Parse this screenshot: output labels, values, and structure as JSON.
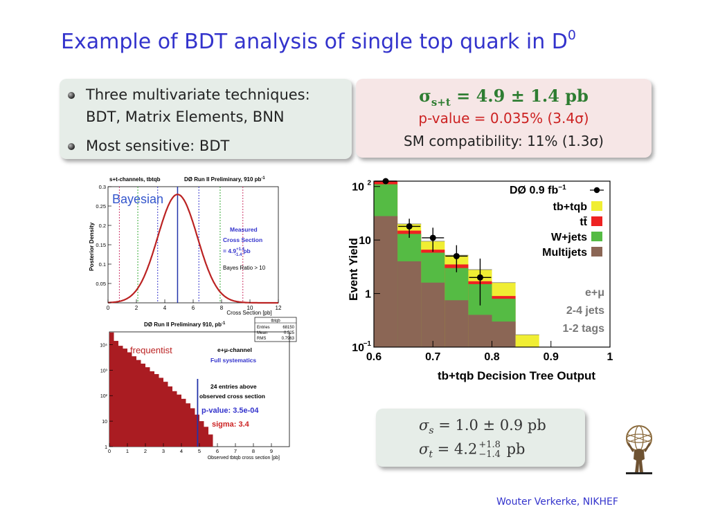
{
  "slide": {
    "title": "Example of BDT analysis of single top quark in D",
    "title_sup": "0",
    "footer": "Wouter Verkerke, NIKHEF"
  },
  "bullets": [
    {
      "line1": "Three multivariate techniques:",
      "line2": "BDT, Matrix Elements, BNN"
    },
    {
      "line1": "Most sensitive: BDT"
    }
  ],
  "result_box": {
    "sigma": "σ",
    "sigma_sub": "s+t",
    "sigma_value": " = 4.9 ± 1.4 pb",
    "pvalue": "p-value = 0.035% (3.4σ)",
    "sm": "SM compatibility: 11% (1.3σ)"
  },
  "xsec_box": {
    "s_sym": "σ",
    "s_sub": "s",
    "s_val": " = 1.0 ± 0.9 pb",
    "t_sym": "σ",
    "t_sub": "t",
    "t_pre": " = 4.2",
    "t_up": "+1.8",
    "t_dn": "−1.4",
    "t_unit": " pb"
  },
  "chart_data": [
    {
      "type": "line",
      "panel": "bayesian",
      "header_left": "s+t-channels, tbtqb",
      "header_right": "DØ Run II Preliminary, 910 pb",
      "header_right_sup": "-1",
      "label": "Bayesian",
      "xlabel": "Cross Section [pb]",
      "ylabel": "Posterior Density",
      "xlim": [
        0,
        12
      ],
      "ylim": [
        0,
        0.3
      ],
      "xticks": [
        0,
        2,
        4,
        6,
        8,
        10,
        12
      ],
      "yticks": [
        0,
        0.05,
        0.1,
        0.15,
        0.2,
        0.25,
        0.3
      ],
      "peak_x": 4.9,
      "peak_y": 0.28,
      "sigma_low": 1.4,
      "sigma_high": 1.4,
      "vlines": [
        {
          "x": 0.8,
          "color": "#cc3366"
        },
        {
          "x": 2.1,
          "color": "#33aa33"
        },
        {
          "x": 3.5,
          "color": "#3333cc"
        },
        {
          "x": 4.9,
          "color": "#2233aa"
        },
        {
          "x": 6.4,
          "color": "#3333cc"
        },
        {
          "x": 7.9,
          "color": "#33aa33"
        },
        {
          "x": 9.5,
          "color": "#cc3366"
        }
      ],
      "annot_measured": "Measured",
      "annot_cross": "Cross Section",
      "annot_value": "= 4.9",
      "annot_up": "+1.4",
      "annot_dn": "-1.4",
      "annot_unit": "pb",
      "annot_bayes": "Bayes Ratio > 10",
      "curve_color": "#bb2222"
    },
    {
      "type": "bar",
      "panel": "frequentist",
      "header": "DØ Run II Preliminary 910, pb",
      "header_sup": "-1",
      "stats_title": "tbtqb",
      "stats": [
        {
          "k": "Entries",
          "v": "68150"
        },
        {
          "k": "Mean",
          "v": "0.525"
        },
        {
          "k": "RMS",
          "v": "0.7963"
        }
      ],
      "label": "frequentist",
      "channel": "e+μ-channel",
      "systematics": "Full systematics",
      "entries_above_1": "24 entries above",
      "entries_above_2": "observed cross section",
      "pvalue": "p-value: 3.5e-04",
      "sigma": "sigma:  3.4",
      "xlabel": "Observed tbtqb cross section [pb]",
      "xlim": [
        0,
        10
      ],
      "xticks": [
        0,
        1,
        2,
        3,
        4,
        5,
        6,
        7,
        8,
        9
      ],
      "ylim_log10": [
        0,
        4.5
      ],
      "yticks": [
        {
          "pow": 0,
          "label": "1"
        },
        {
          "pow": 1,
          "label": "10"
        },
        {
          "pow": 2,
          "label": "10²"
        },
        {
          "pow": 3,
          "label": "10³"
        },
        {
          "pow": 4,
          "label": "10⁴"
        }
      ],
      "observed_x": 4.9,
      "bin_width": 0.25,
      "values": [
        30000,
        14000,
        9000,
        7000,
        5000,
        3500,
        2500,
        1800,
        1300,
        900,
        700,
        500,
        350,
        230,
        150,
        110,
        75,
        50,
        32,
        18,
        10,
        6,
        3,
        1
      ],
      "bar_color": "#aa1c22"
    },
    {
      "type": "bar",
      "panel": "bdt-output",
      "ylabel": "Event Yield",
      "xlabel": "tb+tqb Decision Tree Output",
      "xlim": [
        0.6,
        1.0
      ],
      "xticks": [
        {
          "v": 0.6,
          "l": "0.6"
        },
        {
          "v": 0.7,
          "l": "0.7"
        },
        {
          "v": 0.8,
          "l": "0.8"
        },
        {
          "v": 0.9,
          "l": "0.9"
        },
        {
          "v": 1.0,
          "l": "1"
        }
      ],
      "ylim_log10": [
        -1,
        2.1
      ],
      "yticks": [
        {
          "pow": -1,
          "base": "10",
          "exp": "−1"
        },
        {
          "pow": 0,
          "base": "1",
          "exp": ""
        },
        {
          "pow": 1,
          "base": "10",
          "exp": ""
        },
        {
          "pow": 2,
          "base": "10",
          "exp": "2"
        }
      ],
      "bin_edges": [
        0.6,
        0.64,
        0.68,
        0.72,
        0.76,
        0.8,
        0.84,
        0.88
      ],
      "stacks": {
        "multijets": [
          28,
          4.0,
          1.6,
          0.75,
          0.4,
          0.3,
          0
        ],
        "wjets": [
          110,
          13,
          5.8,
          3.0,
          1.5,
          0.8,
          0
        ],
        "ttbar": [
          125,
          15,
          6.6,
          3.5,
          1.7,
          0.9,
          0
        ],
        "tbtqb": [
          150,
          20,
          9.5,
          5.2,
          2.8,
          1.6,
          0.17
        ]
      },
      "data_points": [
        {
          "x": 0.62,
          "y": 140,
          "ylo": 118,
          "yhi": 165
        },
        {
          "x": 0.66,
          "y": 18,
          "ylo": 11,
          "yhi": 25
        },
        {
          "x": 0.7,
          "y": 11,
          "ylo": 6,
          "yhi": 17
        },
        {
          "x": 0.74,
          "y": 5,
          "ylo": 2.5,
          "yhi": 8
        },
        {
          "x": 0.78,
          "y": 2,
          "ylo": 0.6,
          "yhi": 4.5
        }
      ],
      "legend_header": "DØ  0.9 fb",
      "legend_header_sup": "−1",
      "legend": [
        {
          "name": "tb+tqb",
          "color": "#f0ee33"
        },
        {
          "name": "tt̄",
          "color": "#ee2222"
        },
        {
          "name": "W+jets",
          "color": "#55bb44"
        },
        {
          "name": "Multijets",
          "color": "#8b6655"
        }
      ],
      "annotation": [
        "e+μ",
        "2-4 jets",
        "1-2 tags"
      ]
    }
  ]
}
